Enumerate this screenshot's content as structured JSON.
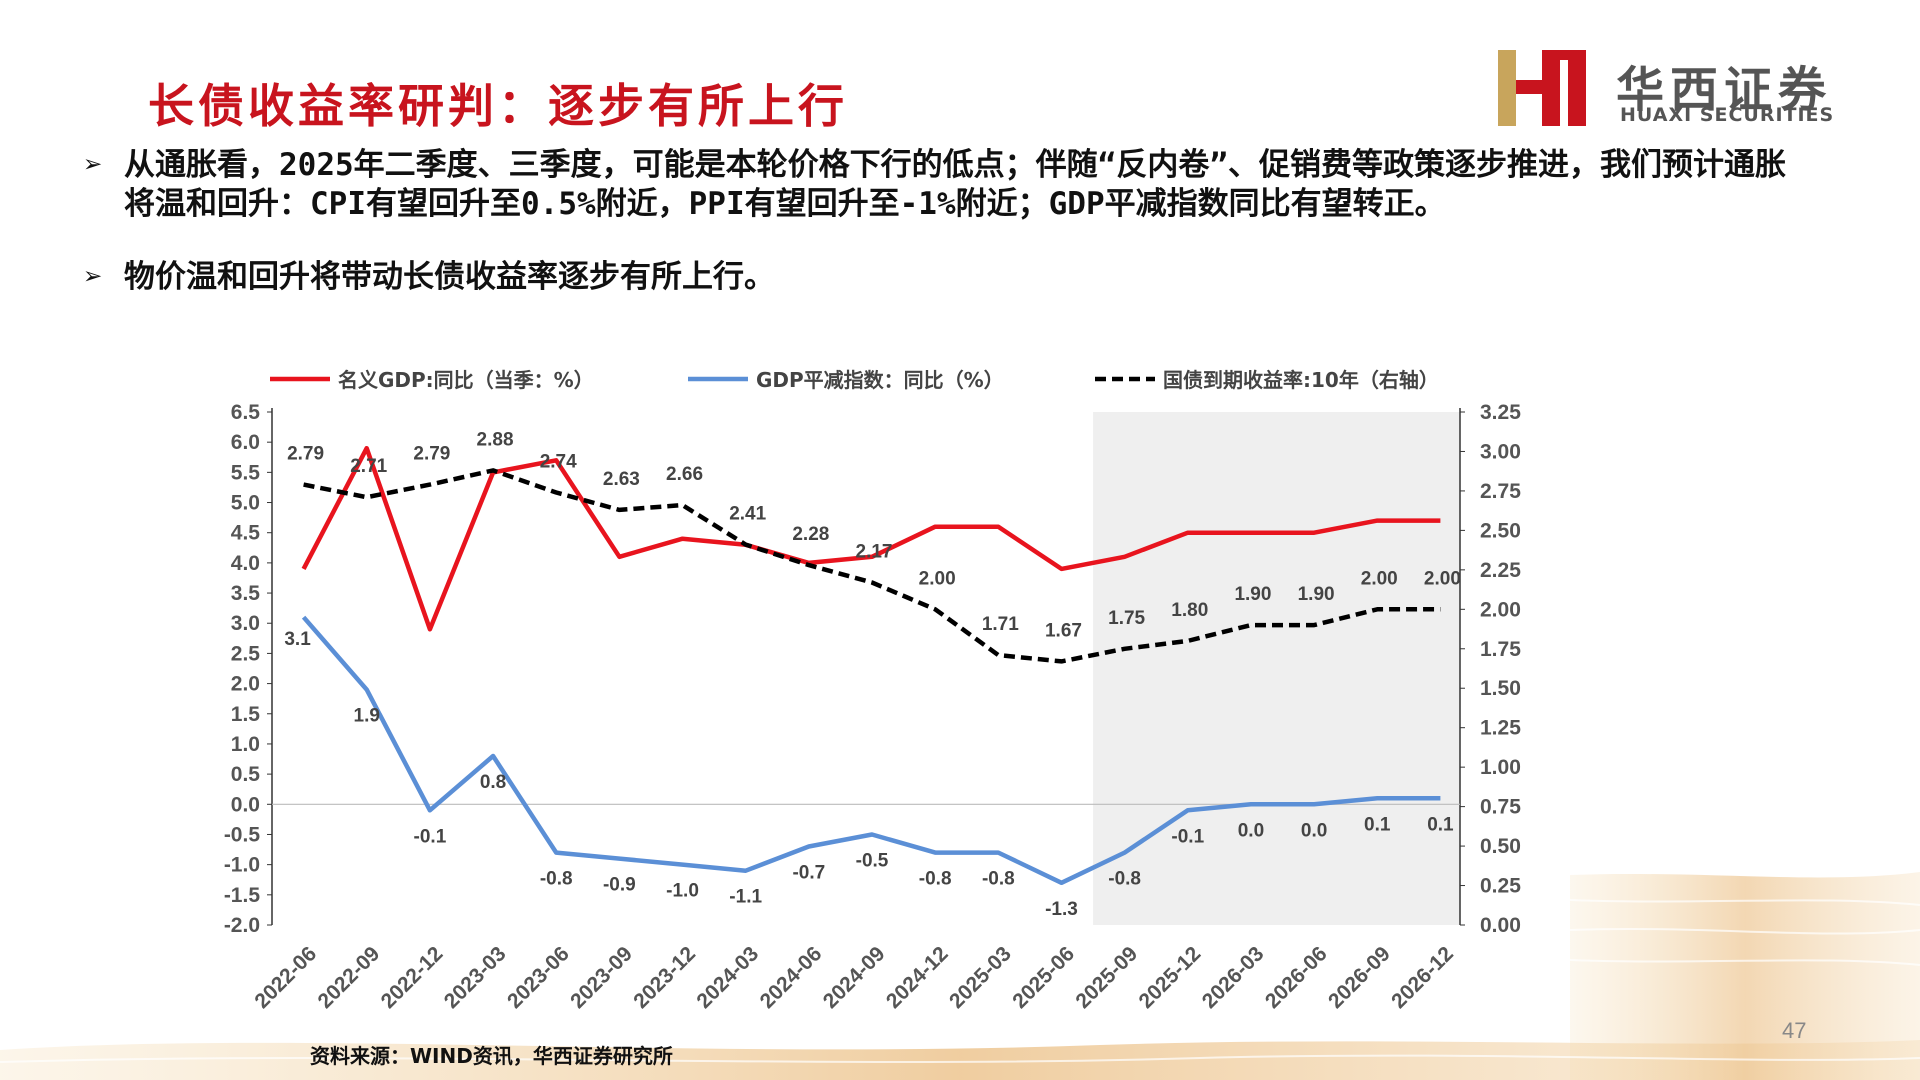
{
  "slide": {
    "title": "长债收益率研判：逐步有所上行",
    "logo_cn": "华西证券",
    "logo_en": "HUAXI SECURITIES",
    "bullets": [
      {
        "marker": "➢",
        "text": "从通胀看，2025年二季度、三季度，可能是本轮价格下行的低点；伴随“反内卷”、促销费等政策逐步推进，我们预计通胀将温和回升：CPI有望回升至0.5%附近，PPI有望回升至-1%附近；GDP平减指数同比有望转正。"
      },
      {
        "marker": "➢",
        "text": "物价温和回升将带动长债收益率逐步有所上行。"
      }
    ],
    "source": "资料来源：WIND资讯，华西证券研究所",
    "page_number": "47",
    "colors": {
      "title_red": "#c8141e",
      "nominal_gdp": "#e8141e",
      "deflator": "#5b8fd6",
      "bond_yield": "#000000",
      "forecast_shade": "#efefef",
      "logo_gold": "#c8a55c"
    }
  },
  "chart_data": {
    "type": "line",
    "categories": [
      "2022-06",
      "2022-09",
      "2022-12",
      "2023-03",
      "2023-06",
      "2023-09",
      "2023-12",
      "2024-03",
      "2024-06",
      "2024-09",
      "2024-12",
      "2025-03",
      "2025-06",
      "2025-09",
      "2025-12",
      "2026-03",
      "2026-06",
      "2026-09",
      "2026-12"
    ],
    "series": [
      {
        "name": "名义GDP:同比（当季：%）",
        "axis": "left",
        "color": "#e8141e",
        "style": "solid",
        "values": [
          3.9,
          5.9,
          2.9,
          5.5,
          5.7,
          4.1,
          4.4,
          4.3,
          4.0,
          4.1,
          4.6,
          4.6,
          3.9,
          4.1,
          4.5,
          4.5,
          4.5,
          4.7,
          4.7
        ],
        "labels": []
      },
      {
        "name": "GDP平减指数：同比（%）",
        "axis": "left",
        "color": "#5b8fd6",
        "style": "solid",
        "values": [
          3.1,
          1.9,
          -0.1,
          0.8,
          -0.8,
          -0.9,
          -1.0,
          -1.1,
          -0.7,
          -0.5,
          -0.8,
          -0.8,
          -1.3,
          -0.8,
          -0.1,
          0.0,
          0.0,
          0.1,
          0.1
        ],
        "labels": [
          "3.1",
          "1.9",
          "-0.1",
          "0.8",
          "-0.8",
          "-0.9",
          "-1.0",
          "-1.1",
          "-0.7",
          "-0.5",
          "-0.8",
          "-0.8",
          "-1.3",
          "-0.8",
          "-0.1",
          "0.0",
          "0.0",
          "0.1",
          "0.1"
        ]
      },
      {
        "name": "国债到期收益率:10年（右轴）",
        "axis": "right",
        "color": "#000000",
        "style": "dashed",
        "values": [
          2.79,
          2.71,
          2.79,
          2.88,
          2.74,
          2.63,
          2.66,
          2.41,
          2.28,
          2.17,
          2.0,
          1.71,
          1.67,
          1.75,
          1.8,
          1.9,
          1.9,
          2.0,
          2.0
        ],
        "labels": [
          "2.79",
          "2.71",
          "2.79",
          "2.88",
          "2.74",
          "2.63",
          "2.66",
          "2.41",
          "2.28",
          "2.17",
          "2.00",
          "1.71",
          "1.67",
          "1.75",
          "1.80",
          "1.90",
          "1.90",
          "2.00",
          "2.00"
        ]
      }
    ],
    "y_left": {
      "min": -2.0,
      "max": 6.5,
      "ticks": [
        "-2.0",
        "-1.5",
        "-1.0",
        "-0.5",
        "0.0",
        "0.5",
        "1.0",
        "1.5",
        "2.0",
        "2.5",
        "3.0",
        "3.5",
        "4.0",
        "4.5",
        "5.0",
        "5.5",
        "6.0",
        "6.5"
      ]
    },
    "y_right": {
      "min": 0.0,
      "max": 3.25,
      "ticks": [
        "0.00",
        "0.25",
        "0.50",
        "0.75",
        "1.00",
        "1.25",
        "1.50",
        "1.75",
        "2.00",
        "2.25",
        "2.50",
        "2.75",
        "3.00",
        "3.25"
      ]
    },
    "shaded_forecast_from": "2025-09",
    "legend_position": "top",
    "grid": false
  }
}
